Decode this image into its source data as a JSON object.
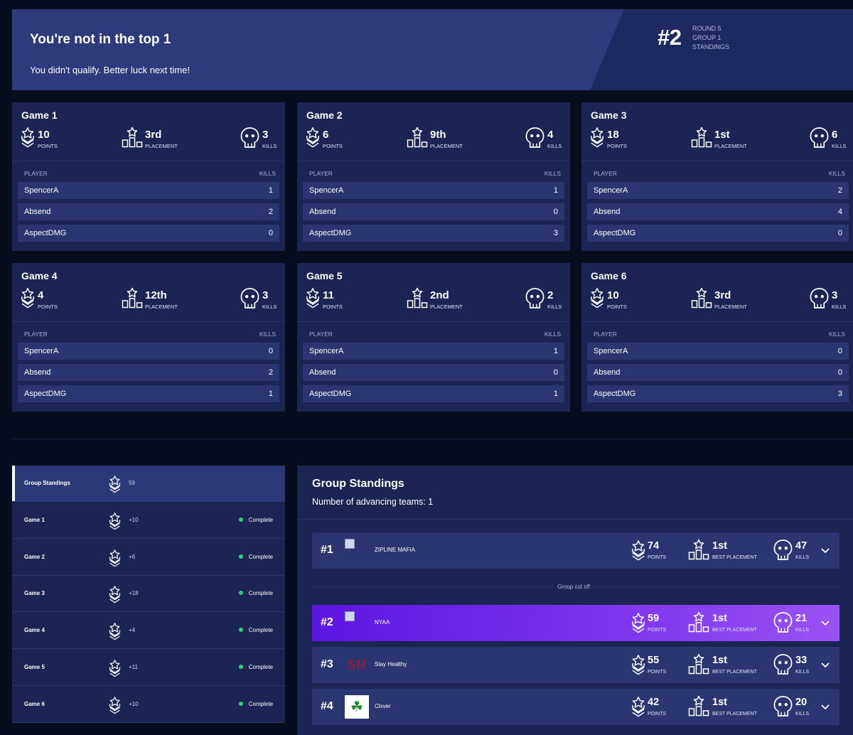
{
  "banner": {
    "title": "You're not in the top 1",
    "subtitle": "You didn't qualify. Better luck next time!",
    "rank": "#2",
    "meta": [
      "ROUND 5",
      "GROUP 1",
      "STANDINGS"
    ]
  },
  "game_labels": {
    "points": "POINTS",
    "placement": "PLACEMENT",
    "kills": "KILLS",
    "player_col": "PLAYER",
    "kills_col": "KILLS"
  },
  "games": [
    {
      "title": "Game 1",
      "points": "10",
      "placement": "3rd",
      "kills": "3",
      "players": [
        {
          "name": "SpencerA",
          "kills": "1"
        },
        {
          "name": "Absend",
          "kills": "2"
        },
        {
          "name": "AspectDMG",
          "kills": "0"
        }
      ]
    },
    {
      "title": "Game 2",
      "points": "6",
      "placement": "9th",
      "kills": "4",
      "players": [
        {
          "name": "SpencerA",
          "kills": "1"
        },
        {
          "name": "Absend",
          "kills": "0"
        },
        {
          "name": "AspectDMG",
          "kills": "3"
        }
      ]
    },
    {
      "title": "Game 3",
      "points": "18",
      "placement": "1st",
      "kills": "6",
      "players": [
        {
          "name": "SpencerA",
          "kills": "2"
        },
        {
          "name": "Absend",
          "kills": "4"
        },
        {
          "name": "AspectDMG",
          "kills": "0"
        }
      ]
    },
    {
      "title": "Game 4",
      "points": "4",
      "placement": "12th",
      "kills": "3",
      "players": [
        {
          "name": "SpencerA",
          "kills": "0"
        },
        {
          "name": "Absend",
          "kills": "2"
        },
        {
          "name": "AspectDMG",
          "kills": "1"
        }
      ]
    },
    {
      "title": "Game 5",
      "points": "11",
      "placement": "2nd",
      "kills": "2",
      "players": [
        {
          "name": "SpencerA",
          "kills": "1"
        },
        {
          "name": "Absend",
          "kills": "0"
        },
        {
          "name": "AspectDMG",
          "kills": "1"
        }
      ]
    },
    {
      "title": "Game 6",
      "points": "10",
      "placement": "3rd",
      "kills": "3",
      "players": [
        {
          "name": "SpencerA",
          "kills": "0"
        },
        {
          "name": "Absend",
          "kills": "0"
        },
        {
          "name": "AspectDMG",
          "kills": "3"
        }
      ]
    }
  ],
  "tabs": [
    {
      "name": "Group Standings",
      "points": "59",
      "status": ""
    },
    {
      "name": "Game 1",
      "points": "+10",
      "status": "Complete"
    },
    {
      "name": "Game 2",
      "points": "+6",
      "status": "Complete"
    },
    {
      "name": "Game 3",
      "points": "+18",
      "status": "Complete"
    },
    {
      "name": "Game 4",
      "points": "+4",
      "status": "Complete"
    },
    {
      "name": "Game 5",
      "points": "+11",
      "status": "Complete"
    },
    {
      "name": "Game 6",
      "points": "+10",
      "status": "Complete"
    }
  ],
  "standings": {
    "title": "Group Standings",
    "advancing": "Number of advancing teams: 1",
    "cutoff_label": "Group cut off",
    "labels": {
      "points": "POINTS",
      "best_placement": "BEST PLACEMENT",
      "kills": "KILLS"
    },
    "teams": [
      {
        "rank": "#1",
        "name": "ZIPLINE MAFIA",
        "points": "74",
        "best": "1st",
        "kills": "47"
      },
      {
        "rank": "#2",
        "name": "NYAA",
        "points": "59",
        "best": "1st",
        "kills": "21"
      },
      {
        "rank": "#3",
        "name": "Stay Healthy",
        "logo_text": "SH",
        "points": "55",
        "best": "1st",
        "kills": "33"
      },
      {
        "rank": "#4",
        "name": "Clxver",
        "logo_text": "☘",
        "points": "42",
        "best": "1st",
        "kills": "20"
      }
    ]
  },
  "colors": {
    "background": "#070c1f",
    "card": "#1b2453",
    "row": "#2b3670",
    "banner": "#2d3a7c",
    "highlight_start": "#5b16e0",
    "highlight_end": "#9a52f4",
    "complete_dot": "#22d37f",
    "sh_logo": "#c0101a",
    "clover": "#1f8a2a"
  }
}
